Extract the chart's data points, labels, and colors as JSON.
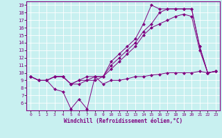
{
  "xlabel": "Windchill (Refroidissement éolien,°C)",
  "ylabel": "",
  "bg_color": "#c8f0f0",
  "line_color": "#800080",
  "grid_color": "#ffffff",
  "xlim": [
    -0.5,
    23.5
  ],
  "ylim": [
    5,
    19.5
  ],
  "xticks": [
    0,
    1,
    2,
    3,
    4,
    5,
    6,
    7,
    8,
    9,
    10,
    11,
    12,
    13,
    14,
    15,
    16,
    17,
    18,
    19,
    20,
    21,
    22,
    23
  ],
  "yticks": [
    6,
    7,
    8,
    9,
    10,
    11,
    12,
    13,
    14,
    15,
    16,
    17,
    18,
    19
  ],
  "series": [
    {
      "x": [
        0,
        1,
        2,
        3,
        4,
        5,
        6,
        7,
        8,
        9,
        10,
        11,
        12,
        13,
        14,
        15,
        16,
        17,
        18,
        19,
        20,
        21,
        22,
        23
      ],
      "y": [
        9.5,
        9.0,
        9.0,
        7.8,
        7.5,
        5.2,
        6.5,
        5.2,
        9.5,
        8.5,
        9.0,
        9.0,
        9.2,
        9.5,
        9.5,
        9.7,
        9.8,
        10.0,
        10.0,
        10.0,
        10.0,
        10.2,
        10.0,
        10.2
      ],
      "marker": "D",
      "markersize": 2
    },
    {
      "x": [
        0,
        1,
        2,
        3,
        4,
        5,
        6,
        7,
        8,
        9,
        10,
        11,
        12,
        13,
        14,
        15,
        16,
        17,
        18,
        19,
        20,
        21,
        22,
        23
      ],
      "y": [
        9.5,
        9.0,
        9.0,
        9.5,
        9.5,
        8.5,
        8.5,
        9.0,
        9.0,
        9.5,
        10.5,
        11.5,
        12.5,
        13.5,
        15.0,
        16.0,
        16.5,
        17.0,
        17.5,
        17.8,
        17.5,
        13.0,
        10.0,
        10.2
      ],
      "marker": "D",
      "markersize": 2
    },
    {
      "x": [
        0,
        1,
        2,
        3,
        4,
        5,
        6,
        7,
        8,
        9,
        10,
        11,
        12,
        13,
        14,
        15,
        16,
        17,
        18,
        19,
        20,
        21,
        22,
        23
      ],
      "y": [
        9.5,
        9.0,
        9.0,
        9.5,
        9.5,
        8.5,
        9.0,
        9.0,
        9.5,
        9.5,
        11.0,
        12.0,
        13.0,
        14.0,
        15.5,
        16.5,
        18.0,
        18.5,
        18.5,
        18.5,
        18.5,
        13.5,
        10.0,
        10.2
      ],
      "marker": "D",
      "markersize": 2
    },
    {
      "x": [
        0,
        1,
        2,
        3,
        4,
        5,
        6,
        7,
        8,
        9,
        10,
        11,
        12,
        13,
        14,
        15,
        16,
        17,
        18,
        19,
        20,
        21,
        22,
        23
      ],
      "y": [
        9.5,
        9.0,
        9.0,
        9.5,
        9.5,
        8.5,
        9.0,
        9.5,
        9.5,
        9.5,
        11.5,
        12.5,
        13.5,
        14.5,
        16.5,
        19.0,
        18.5,
        18.5,
        18.5,
        18.5,
        18.5,
        13.5,
        10.0,
        10.2
      ],
      "marker": "D",
      "markersize": 2
    }
  ]
}
